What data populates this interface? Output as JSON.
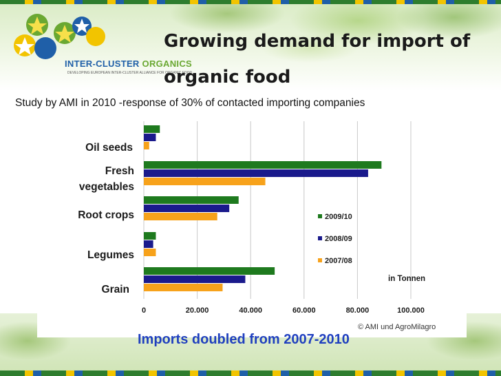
{
  "logo": {
    "name_part1": "INTER-CLUSTER ",
    "name_part2": "ORGANICS",
    "tagline": "DEVELOPING EUROPEAN INTER-CLUSTER ALLIANCE FOR ORGANIC FOOD"
  },
  "title": "Growing demand for import of organic food",
  "subtitle": "Study by AMI in 2010 -response of 30% of contacted importing companies",
  "footer": "Imports doubled from 2007-2010",
  "copyright": "© AMI und AgroMilagro",
  "colors": {
    "s2009": "#1e7a1e",
    "s2008": "#1a1a8c",
    "s2007": "#f7a21b",
    "grid": "#c8c8c8",
    "title_text": "#1a1a1a",
    "footer_text": "#1f3fbf"
  },
  "chart_data": {
    "type": "bar",
    "orientation": "horizontal",
    "categories": [
      "Oil seeds",
      "Fresh vegetables",
      "Root crops",
      "Legumes",
      "Grain"
    ],
    "series": [
      {
        "name": "2009/10",
        "values": [
          6000,
          89000,
          35500,
          4500,
          49000
        ]
      },
      {
        "name": "2008/09",
        "values": [
          4500,
          84000,
          32000,
          3500,
          38000
        ]
      },
      {
        "name": "2007/08",
        "values": [
          2000,
          45500,
          27500,
          4500,
          29500
        ]
      }
    ],
    "xlim": [
      0,
      100000
    ],
    "xticks": [
      0,
      20000,
      40000,
      60000,
      80000,
      100000
    ],
    "tick_labels": [
      "0",
      "20.000",
      "40.000",
      "60.000",
      "80.000",
      "100.000"
    ],
    "unit_label": "in Tonnen",
    "legend_position": "right",
    "grid": true
  }
}
